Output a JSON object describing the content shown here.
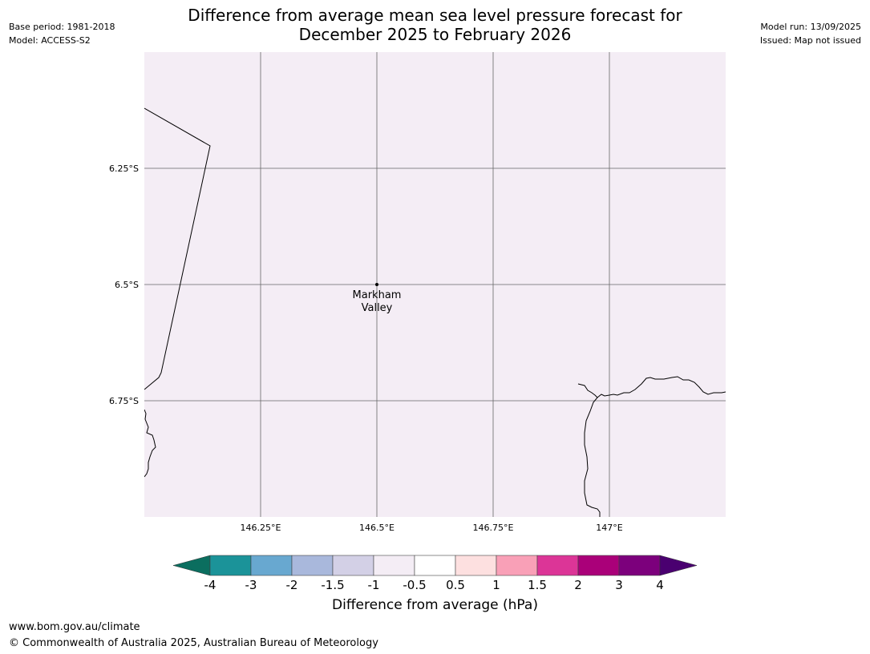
{
  "header": {
    "title_line1": "Difference from average mean sea level pressure forecast for",
    "title_line2": "December 2025 to February 2026",
    "base_period": "Base period: 1981-2018",
    "model": "Model: ACCESS-S2",
    "model_run": "Model run: 13/09/2025",
    "issued": "Issued: Map not issued"
  },
  "map": {
    "background_color": "#f4edf5",
    "place_label_line1": "Markham",
    "place_label_line2": "Valley",
    "lat_ticks": [
      {
        "value": -6.25,
        "label": "6.25°S"
      },
      {
        "value": -6.5,
        "label": "6.5°S"
      },
      {
        "value": -6.75,
        "label": "6.75°S"
      }
    ],
    "lon_ticks": [
      {
        "value": 146.25,
        "label": "146.25°E"
      },
      {
        "value": 146.5,
        "label": "146.5°E"
      },
      {
        "value": 146.75,
        "label": "146.75°E"
      },
      {
        "value": 147.0,
        "label": "147°E"
      }
    ],
    "extent": {
      "lon_min": 146.0,
      "lon_max": 147.25,
      "lat_min": -7.0,
      "lat_max": -6.0
    }
  },
  "colorbar": {
    "label": "Difference from average (hPa)",
    "tick_labels": [
      "-4",
      "-3",
      "-2",
      "-1.5",
      "-1",
      "-0.5",
      "0.5",
      "1",
      "1.5",
      "2",
      "3",
      "4"
    ],
    "under_color": "#0b6e5f",
    "over_color": "#4a0070",
    "colors": [
      "#1b9399",
      "#68a8d0",
      "#a9b8dc",
      "#d3d0e6",
      "#f4edf5",
      "#ffffff",
      "#fde0e0",
      "#f9a0b7",
      "#dc3597",
      "#aa0079",
      "#7c007c"
    ]
  },
  "footer": {
    "url": "www.bom.gov.au/climate",
    "copyright": "© Commonwealth of Australia 2025, Australian Bureau of Meteorology"
  }
}
